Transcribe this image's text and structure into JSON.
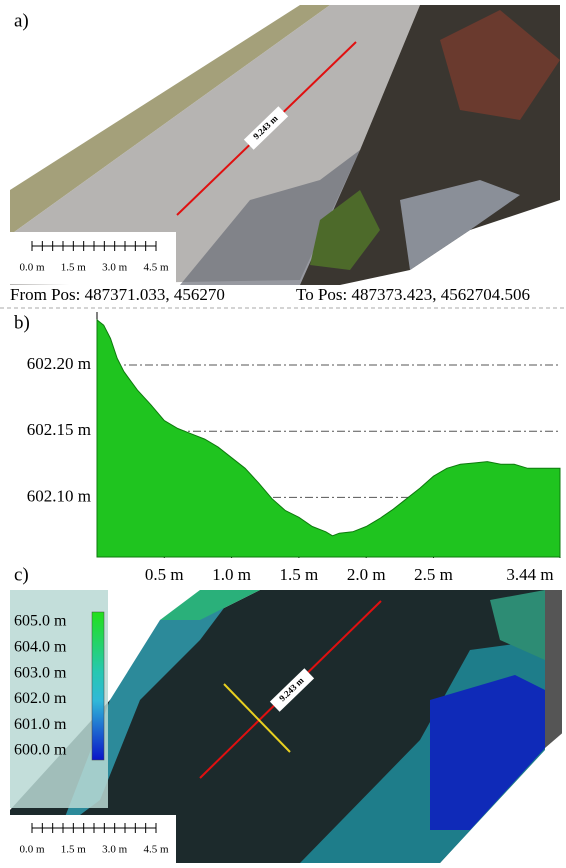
{
  "panel_a": {
    "label": "a)",
    "line_label": "9.243 m",
    "scale_labels": [
      "0.0 m",
      "1.5 m",
      "3.0 m",
      "4.5 m"
    ],
    "from_pos": "From Pos: 487371.033, 456270",
    "to_pos": "To Pos: 487373.423, 4562704.506"
  },
  "chart_data": {
    "type": "area",
    "label": "b)",
    "color": "#1fc41f",
    "x": [
      0,
      0.05,
      0.1,
      0.15,
      0.2,
      0.3,
      0.4,
      0.5,
      0.6,
      0.7,
      0.8,
      0.9,
      1.0,
      1.1,
      1.2,
      1.3,
      1.4,
      1.5,
      1.6,
      1.7,
      1.75,
      1.8,
      1.9,
      2.0,
      2.1,
      2.2,
      2.3,
      2.4,
      2.5,
      2.6,
      2.7,
      2.8,
      2.9,
      3.0,
      3.1,
      3.2,
      3.3,
      3.44
    ],
    "values": [
      602.234,
      602.23,
      602.22,
      602.205,
      602.195,
      602.181,
      602.17,
      602.158,
      602.152,
      602.148,
      602.144,
      602.138,
      602.13,
      602.122,
      602.111,
      602.099,
      602.09,
      602.085,
      602.078,
      602.074,
      602.071,
      602.073,
      602.074,
      602.078,
      602.084,
      602.091,
      602.099,
      602.107,
      602.116,
      602.122,
      602.125,
      602.126,
      602.127,
      602.125,
      602.125,
      602.122,
      602.122,
      602.122
    ],
    "xlim": [
      0,
      3.44
    ],
    "ylim": [
      602.055,
      602.24
    ],
    "xticks": [
      {
        "value": 0.5,
        "label": "0.5 m"
      },
      {
        "value": 1.0,
        "label": "1.0 m"
      },
      {
        "value": 1.5,
        "label": "1.5 m"
      },
      {
        "value": 2.0,
        "label": "2.0 m"
      },
      {
        "value": 2.5,
        "label": "2.5 m"
      },
      {
        "value": 3.44,
        "label": "3.44 m"
      }
    ],
    "yticks": [
      {
        "value": 602.1,
        "label": "602.10 m"
      },
      {
        "value": 602.15,
        "label": "602.15 m"
      },
      {
        "value": 602.2,
        "label": "602.20 m"
      }
    ],
    "grid": true
  },
  "panel_c": {
    "label": "c)",
    "line_label": "9.243 m",
    "colorbar_labels": [
      "605.0 m",
      "604.0 m",
      "603.0 m",
      "602.0 m",
      "601.0 m",
      "600.0 m"
    ],
    "scale_labels": [
      "0.0 m",
      "1.5 m",
      "3.0 m",
      "4.5 m"
    ]
  }
}
